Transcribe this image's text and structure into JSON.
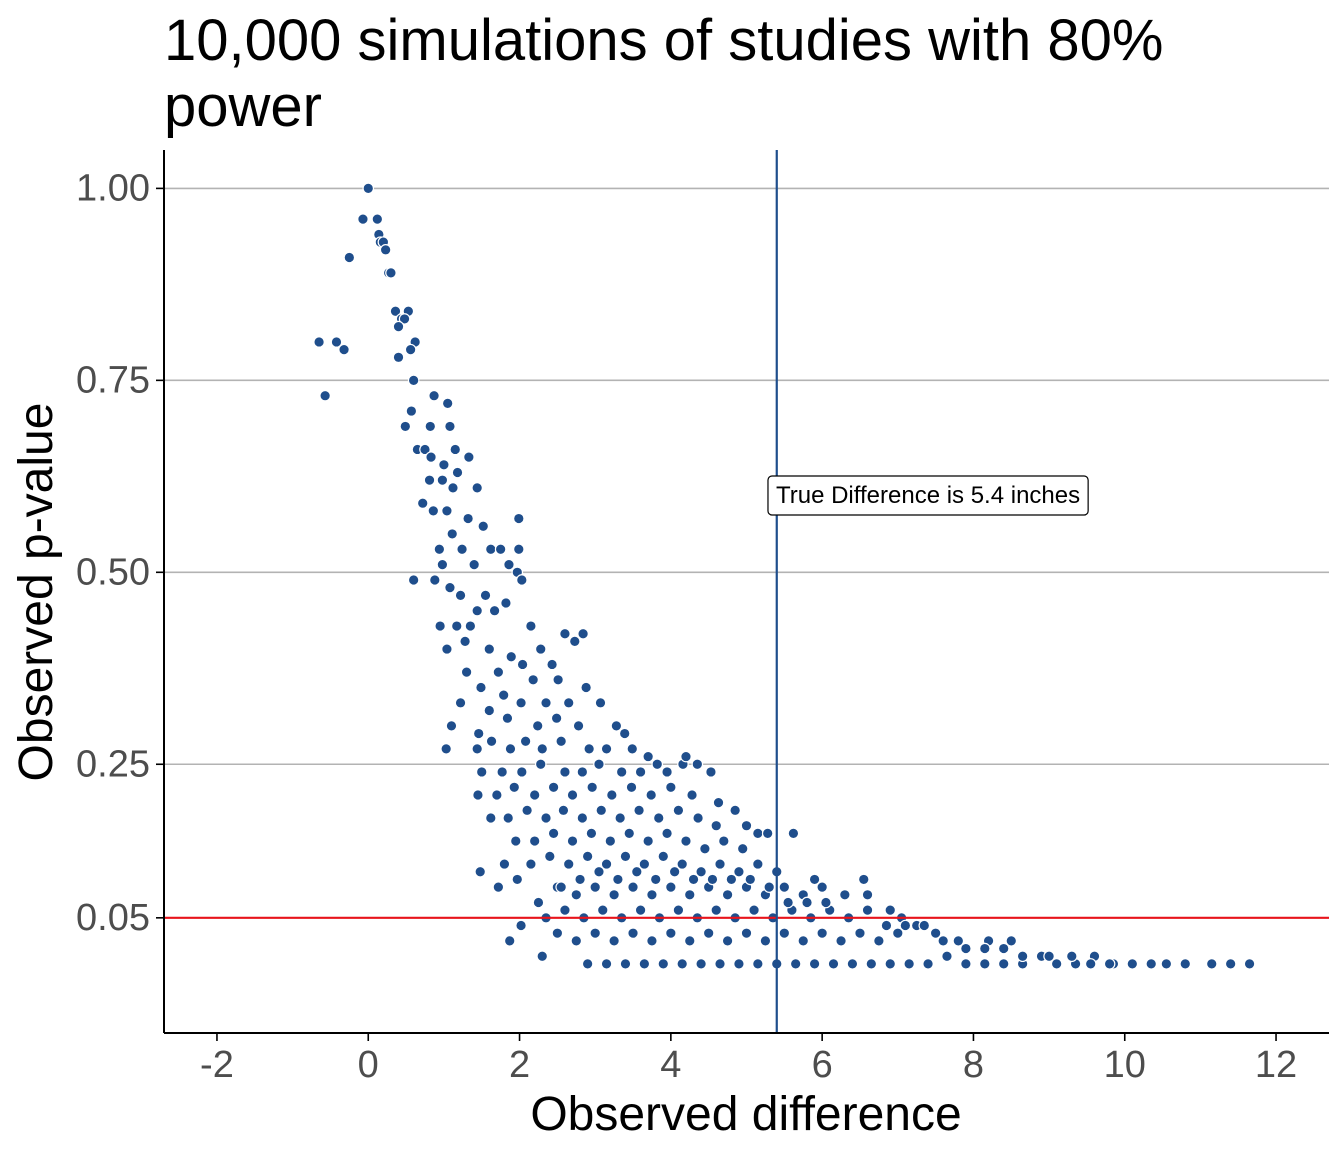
{
  "colors": {
    "point": "#1f4e8c",
    "point_stroke": "#ffffff",
    "true_line": "#1f4e8c",
    "threshold_line": "#e8141c",
    "grid": "#b3b3b3",
    "axis": "#000000"
  },
  "chart_data": {
    "type": "scatter",
    "title": "10,000 simulations of studies with 80% power",
    "xlabel": "Observed difference",
    "ylabel": "Observed p-value",
    "xlim": [
      -2.7,
      12.7
    ],
    "ylim": [
      -0.1,
      1.05
    ],
    "x_ticks": [
      -2,
      0,
      2,
      4,
      6,
      8,
      10,
      12
    ],
    "x_tick_labels": [
      "-2",
      "0",
      "2",
      "4",
      "6",
      "8",
      "10",
      "12"
    ],
    "y_ticks": [
      0.05,
      0.25,
      0.5,
      0.75,
      1.0
    ],
    "y_tick_labels": [
      "0.05",
      "0.25",
      "0.50",
      "0.75",
      "1.00"
    ],
    "grid": "horizontal major lines only",
    "vline": {
      "x": 5.4,
      "color": "#1f4e8c"
    },
    "hline": {
      "y": 0.05,
      "color": "#e8141c"
    },
    "annotation": {
      "text": "True Difference is 5.4 inches",
      "x": 7.4,
      "y": 0.6
    },
    "points": [
      [
        0.0,
        1.0
      ],
      [
        -0.07,
        0.96
      ],
      [
        0.12,
        0.96
      ],
      [
        0.14,
        0.94
      ],
      [
        0.16,
        0.93
      ],
      [
        -0.25,
        0.91
      ],
      [
        0.2,
        0.93
      ],
      [
        0.23,
        0.92
      ],
      [
        0.27,
        0.89
      ],
      [
        0.3,
        0.89
      ],
      [
        0.36,
        0.84
      ],
      [
        0.44,
        0.83
      ],
      [
        0.53,
        0.84
      ],
      [
        0.48,
        0.83
      ],
      [
        0.4,
        0.82
      ],
      [
        0.62,
        0.8
      ],
      [
        0.56,
        0.79
      ],
      [
        0.4,
        0.78
      ],
      [
        -0.65,
        0.8
      ],
      [
        -0.42,
        0.8
      ],
      [
        -0.32,
        0.79
      ],
      [
        -0.57,
        0.73
      ],
      [
        0.6,
        0.75
      ],
      [
        0.87,
        0.73
      ],
      [
        0.57,
        0.71
      ],
      [
        0.82,
        0.69
      ],
      [
        0.49,
        0.69
      ],
      [
        1.05,
        0.72
      ],
      [
        1.08,
        0.69
      ],
      [
        0.65,
        0.66
      ],
      [
        1.15,
        0.66
      ],
      [
        0.75,
        0.66
      ],
      [
        0.83,
        0.65
      ],
      [
        1.33,
        0.65
      ],
      [
        1.0,
        0.64
      ],
      [
        1.18,
        0.63
      ],
      [
        0.81,
        0.62
      ],
      [
        0.98,
        0.62
      ],
      [
        1.12,
        0.61
      ],
      [
        1.44,
        0.61
      ],
      [
        0.72,
        0.59
      ],
      [
        0.86,
        0.58
      ],
      [
        1.04,
        0.58
      ],
      [
        1.32,
        0.57
      ],
      [
        1.52,
        0.56
      ],
      [
        1.99,
        0.57
      ],
      [
        1.11,
        0.55
      ],
      [
        0.94,
        0.53
      ],
      [
        1.24,
        0.53
      ],
      [
        1.62,
        0.53
      ],
      [
        1.75,
        0.53
      ],
      [
        1.99,
        0.53
      ],
      [
        0.98,
        0.51
      ],
      [
        1.4,
        0.51
      ],
      [
        1.86,
        0.51
      ],
      [
        1.97,
        0.5
      ],
      [
        2.03,
        0.49
      ],
      [
        0.88,
        0.49
      ],
      [
        1.08,
        0.48
      ],
      [
        0.6,
        0.49
      ],
      [
        1.22,
        0.47
      ],
      [
        1.55,
        0.47
      ],
      [
        1.82,
        0.46
      ],
      [
        1.44,
        0.45
      ],
      [
        1.67,
        0.45
      ],
      [
        2.15,
        0.43
      ],
      [
        0.95,
        0.43
      ],
      [
        1.17,
        0.43
      ],
      [
        1.35,
        0.43
      ],
      [
        1.28,
        0.41
      ],
      [
        1.04,
        0.4
      ],
      [
        1.6,
        0.4
      ],
      [
        1.89,
        0.39
      ],
      [
        2.28,
        0.4
      ],
      [
        2.73,
        0.41
      ],
      [
        2.6,
        0.42
      ],
      [
        2.84,
        0.42
      ],
      [
        1.3,
        0.37
      ],
      [
        1.72,
        0.37
      ],
      [
        2.04,
        0.38
      ],
      [
        2.43,
        0.38
      ],
      [
        1.49,
        0.35
      ],
      [
        1.79,
        0.34
      ],
      [
        2.18,
        0.36
      ],
      [
        2.51,
        0.36
      ],
      [
        2.88,
        0.35
      ],
      [
        1.22,
        0.33
      ],
      [
        1.6,
        0.32
      ],
      [
        2.02,
        0.33
      ],
      [
        2.35,
        0.33
      ],
      [
        2.65,
        0.33
      ],
      [
        3.07,
        0.33
      ],
      [
        1.1,
        0.3
      ],
      [
        1.46,
        0.29
      ],
      [
        1.84,
        0.31
      ],
      [
        2.24,
        0.3
      ],
      [
        2.49,
        0.31
      ],
      [
        2.78,
        0.3
      ],
      [
        3.28,
        0.3
      ],
      [
        3.39,
        0.29
      ],
      [
        1.03,
        0.27
      ],
      [
        1.44,
        0.27
      ],
      [
        1.63,
        0.28
      ],
      [
        1.88,
        0.27
      ],
      [
        2.08,
        0.28
      ],
      [
        2.3,
        0.27
      ],
      [
        2.55,
        0.28
      ],
      [
        2.92,
        0.27
      ],
      [
        3.15,
        0.27
      ],
      [
        3.49,
        0.27
      ],
      [
        3.7,
        0.26
      ],
      [
        3.82,
        0.25
      ],
      [
        4.16,
        0.25
      ],
      [
        4.2,
        0.26
      ],
      [
        1.5,
        0.24
      ],
      [
        1.77,
        0.24
      ],
      [
        2.03,
        0.24
      ],
      [
        2.28,
        0.25
      ],
      [
        2.6,
        0.24
      ],
      [
        2.83,
        0.24
      ],
      [
        3.05,
        0.25
      ],
      [
        3.35,
        0.24
      ],
      [
        3.6,
        0.24
      ],
      [
        3.95,
        0.24
      ],
      [
        4.35,
        0.25
      ],
      [
        4.53,
        0.24
      ],
      [
        1.45,
        0.21
      ],
      [
        1.7,
        0.21
      ],
      [
        1.93,
        0.22
      ],
      [
        2.2,
        0.21
      ],
      [
        2.45,
        0.22
      ],
      [
        2.7,
        0.21
      ],
      [
        2.96,
        0.22
      ],
      [
        3.22,
        0.21
      ],
      [
        3.48,
        0.22
      ],
      [
        3.74,
        0.21
      ],
      [
        4.0,
        0.22
      ],
      [
        4.28,
        0.21
      ],
      [
        4.63,
        0.2
      ],
      [
        4.85,
        0.19
      ],
      [
        1.62,
        0.18
      ],
      [
        1.85,
        0.18
      ],
      [
        2.1,
        0.19
      ],
      [
        2.35,
        0.18
      ],
      [
        2.58,
        0.19
      ],
      [
        2.83,
        0.18
      ],
      [
        3.08,
        0.19
      ],
      [
        3.33,
        0.18
      ],
      [
        3.58,
        0.19
      ],
      [
        3.84,
        0.18
      ],
      [
        4.1,
        0.19
      ],
      [
        4.36,
        0.18
      ],
      [
        4.6,
        0.17
      ],
      [
        5.0,
        0.17
      ],
      [
        5.15,
        0.16
      ],
      [
        5.28,
        0.16
      ],
      [
        5.62,
        0.16
      ],
      [
        1.48,
        0.11
      ],
      [
        1.8,
        0.12
      ],
      [
        1.95,
        0.15
      ],
      [
        2.2,
        0.15
      ],
      [
        2.45,
        0.16
      ],
      [
        2.7,
        0.15
      ],
      [
        2.95,
        0.16
      ],
      [
        3.2,
        0.15
      ],
      [
        3.45,
        0.16
      ],
      [
        3.7,
        0.15
      ],
      [
        3.95,
        0.16
      ],
      [
        4.2,
        0.15
      ],
      [
        4.45,
        0.14
      ],
      [
        4.7,
        0.15
      ],
      [
        4.95,
        0.14
      ],
      [
        1.72,
        0.09
      ],
      [
        1.97,
        0.1
      ],
      [
        2.15,
        0.12
      ],
      [
        2.4,
        0.13
      ],
      [
        2.65,
        0.12
      ],
      [
        2.9,
        0.13
      ],
      [
        3.15,
        0.12
      ],
      [
        3.4,
        0.13
      ],
      [
        3.65,
        0.12
      ],
      [
        3.9,
        0.13
      ],
      [
        4.15,
        0.12
      ],
      [
        4.4,
        0.11
      ],
      [
        4.65,
        0.12
      ],
      [
        4.9,
        0.11
      ],
      [
        5.15,
        0.12
      ],
      [
        5.4,
        0.11
      ],
      [
        1.87,
        0.02
      ],
      [
        2.02,
        0.04
      ],
      [
        2.25,
        0.07
      ],
      [
        2.5,
        0.09
      ],
      [
        2.75,
        0.08
      ],
      [
        3.0,
        0.09
      ],
      [
        3.25,
        0.08
      ],
      [
        3.5,
        0.09
      ],
      [
        3.75,
        0.08
      ],
      [
        4.0,
        0.09
      ],
      [
        4.25,
        0.08
      ],
      [
        4.5,
        0.09
      ],
      [
        4.75,
        0.08
      ],
      [
        5.0,
        0.09
      ],
      [
        5.25,
        0.08
      ],
      [
        5.5,
        0.09
      ],
      [
        5.75,
        0.08
      ],
      [
        6.0,
        0.09
      ],
      [
        6.55,
        0.1
      ],
      [
        5.9,
        0.1
      ],
      [
        2.35,
        0.05
      ],
      [
        2.6,
        0.06
      ],
      [
        2.85,
        0.05
      ],
      [
        3.1,
        0.06
      ],
      [
        3.35,
        0.05
      ],
      [
        3.6,
        0.06
      ],
      [
        3.85,
        0.05
      ],
      [
        4.1,
        0.06
      ],
      [
        4.35,
        0.05
      ],
      [
        4.6,
        0.06
      ],
      [
        4.85,
        0.05
      ],
      [
        5.1,
        0.06
      ],
      [
        5.35,
        0.05
      ],
      [
        5.6,
        0.06
      ],
      [
        5.85,
        0.05
      ],
      [
        6.1,
        0.06
      ],
      [
        6.35,
        0.05
      ],
      [
        6.6,
        0.06
      ],
      [
        6.9,
        0.06
      ],
      [
        7.05,
        0.05
      ],
      [
        2.3,
        0.0
      ],
      [
        2.5,
        0.03
      ],
      [
        2.75,
        0.02
      ],
      [
        3.0,
        0.03
      ],
      [
        3.25,
        0.02
      ],
      [
        3.5,
        0.03
      ],
      [
        3.75,
        0.02
      ],
      [
        4.0,
        0.03
      ],
      [
        4.25,
        0.02
      ],
      [
        4.5,
        0.03
      ],
      [
        4.75,
        0.02
      ],
      [
        5.0,
        0.03
      ],
      [
        5.25,
        0.02
      ],
      [
        5.5,
        0.03
      ],
      [
        5.75,
        0.02
      ],
      [
        6.0,
        0.03
      ],
      [
        6.25,
        0.02
      ],
      [
        6.5,
        0.03
      ],
      [
        6.75,
        0.02
      ],
      [
        7.0,
        0.03
      ],
      [
        7.25,
        0.04
      ],
      [
        7.5,
        0.03
      ],
      [
        7.8,
        0.02
      ],
      [
        8.2,
        0.02
      ],
      [
        8.5,
        0.02
      ],
      [
        2.9,
        -0.01
      ],
      [
        3.15,
        -0.01
      ],
      [
        3.4,
        -0.01
      ],
      [
        3.65,
        -0.01
      ],
      [
        3.9,
        -0.01
      ],
      [
        4.15,
        -0.01
      ],
      [
        4.4,
        -0.01
      ],
      [
        4.65,
        -0.01
      ],
      [
        4.9,
        -0.01
      ],
      [
        5.15,
        -0.01
      ],
      [
        5.4,
        -0.01
      ],
      [
        5.65,
        -0.01
      ],
      [
        5.9,
        -0.01
      ],
      [
        6.15,
        -0.01
      ],
      [
        6.4,
        -0.01
      ],
      [
        6.65,
        -0.01
      ],
      [
        6.9,
        -0.01
      ],
      [
        7.15,
        -0.01
      ],
      [
        7.4,
        -0.01
      ],
      [
        7.65,
        0.0
      ],
      [
        7.9,
        -0.01
      ],
      [
        8.15,
        -0.01
      ],
      [
        8.4,
        -0.01
      ],
      [
        8.65,
        -0.01
      ],
      [
        8.9,
        0.0
      ],
      [
        9.1,
        -0.01
      ],
      [
        9.35,
        -0.01
      ],
      [
        9.6,
        0.0
      ],
      [
        9.85,
        -0.01
      ],
      [
        10.1,
        -0.01
      ],
      [
        10.35,
        -0.01
      ],
      [
        10.55,
        -0.01
      ],
      [
        10.8,
        -0.01
      ],
      [
        11.15,
        -0.01
      ],
      [
        11.4,
        -0.01
      ],
      [
        11.65,
        -0.01
      ],
      [
        2.55,
        0.09
      ],
      [
        2.8,
        0.1
      ],
      [
        3.05,
        0.11
      ],
      [
        3.3,
        0.1
      ],
      [
        3.55,
        0.11
      ],
      [
        3.8,
        0.1
      ],
      [
        4.05,
        0.11
      ],
      [
        4.3,
        0.1
      ],
      [
        4.55,
        0.1
      ],
      [
        4.8,
        0.1
      ],
      [
        5.05,
        0.1
      ],
      [
        5.3,
        0.09
      ],
      [
        5.55,
        0.07
      ],
      [
        5.8,
        0.07
      ],
      [
        6.05,
        0.07
      ],
      [
        6.3,
        0.08
      ],
      [
        6.6,
        0.08
      ],
      [
        6.85,
        0.04
      ],
      [
        7.1,
        0.04
      ],
      [
        7.35,
        0.04
      ],
      [
        7.6,
        0.02
      ],
      [
        7.9,
        0.01
      ],
      [
        8.15,
        0.01
      ],
      [
        8.4,
        0.01
      ],
      [
        8.65,
        0.0
      ],
      [
        9.0,
        0.0
      ],
      [
        9.3,
        0.0
      ],
      [
        9.55,
        -0.01
      ],
      [
        9.8,
        -0.01
      ]
    ]
  }
}
